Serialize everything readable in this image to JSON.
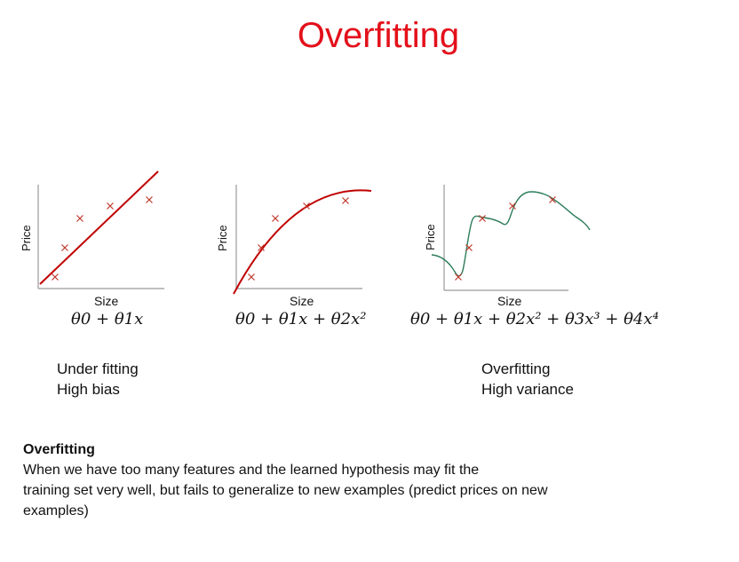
{
  "title": "Overfitting",
  "panels": [
    {
      "ylabel": "Price",
      "xlabel": "Size",
      "fit": "Under fitting",
      "bias": "High bias"
    },
    {
      "ylabel": "Price",
      "xlabel": "Size"
    },
    {
      "ylabel": "Price",
      "xlabel": "Size",
      "fit": "Overfitting",
      "bias": "High variance"
    }
  ],
  "formulas": [
    "θ0 + θ1x",
    "θ0 + θ1x + θ2x²",
    "θ0 + θ1x + θ2x² + θ3x³ + θ4x⁴"
  ],
  "paragraph": {
    "heading": "Overfitting",
    "line1": "When we have too many features and the learned hypothesis may fit the",
    "line2": "training set very well, but fails to generalize to new examples (predict prices on new",
    "line3": "examples)"
  },
  "colors": {
    "title": "#e3101a",
    "fit_line": "#c00000",
    "overfit_curve": "#2e7d5b",
    "marker": "#c0392b",
    "axis": "#999999"
  },
  "icons": [
    "cross-marker"
  ]
}
